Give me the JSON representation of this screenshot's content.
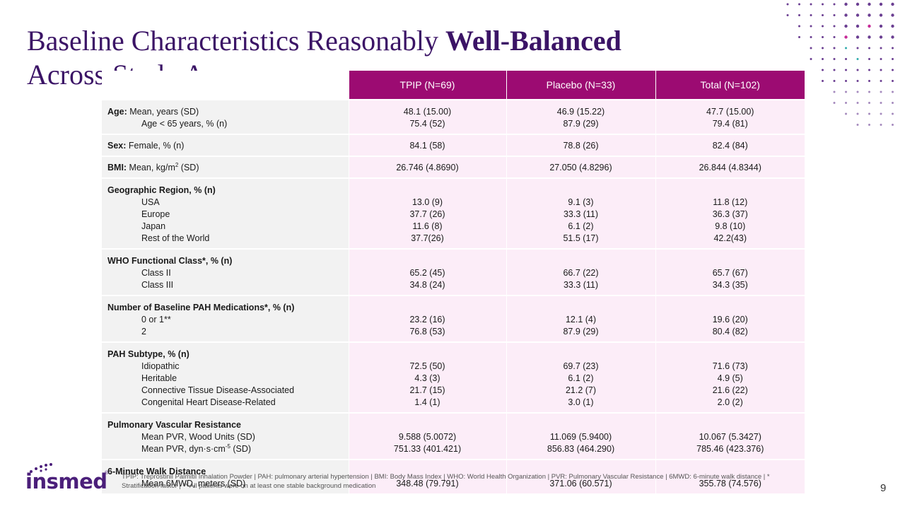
{
  "title": {
    "part1": "Baseline Characteristics Reasonably",
    "bold": "Well-Balanced",
    "part2": "Across Study Arms"
  },
  "table": {
    "headers": [
      "TPIP (N=69)",
      "Placebo (N=33)",
      "Total (N=102)"
    ],
    "age": {
      "label_bold": "Age:",
      "label_rest": " Mean, years (SD)",
      "sub": "Age < 65 years, % (n)",
      "tpip": [
        "48.1 (15.00)",
        "75.4 (52)"
      ],
      "placebo": [
        "46.9 (15.22)",
        "87.9 (29)"
      ],
      "total": [
        "47.7 (15.00)",
        "79.4 (81)"
      ]
    },
    "sex": {
      "label_bold": "Sex:",
      "label_rest": " Female, % (n)",
      "tpip": "84.1 (58)",
      "placebo": "78.8 (26)",
      "total": "82.4 (84)"
    },
    "bmi": {
      "label_bold": "BMI:",
      "label_rest": " Mean, kg/m",
      "label_sup": "2",
      "label_end": " (SD)",
      "tpip": "26.746 (4.8690)",
      "placebo": "27.050 (4.8296)",
      "total": "26.844 (4.8344)"
    },
    "region": {
      "label": "Geographic Region, % (n)",
      "subs": [
        "USA",
        "Europe",
        "Japan",
        "Rest of the World"
      ],
      "tpip": [
        "13.0 (9)",
        "37.7 (26)",
        "11.6 (8)",
        "37.7(26)"
      ],
      "placebo": [
        "9.1 (3)",
        "33.3 (11)",
        "6.1 (2)",
        "51.5 (17)"
      ],
      "total": [
        "11.8 (12)",
        "36.3 (37)",
        "9.8 (10)",
        "42.2(43)"
      ]
    },
    "who": {
      "label": "WHO Functional Class*, % (n)",
      "subs": [
        "Class II",
        "Class III"
      ],
      "tpip": [
        "65.2 (45)",
        "34.8 (24)"
      ],
      "placebo": [
        "66.7 (22)",
        "33.3 (11)"
      ],
      "total": [
        "65.7 (67)",
        "34.3 (35)"
      ]
    },
    "meds": {
      "label": "Number of Baseline PAH Medications*, % (n)",
      "subs": [
        "0 or 1**",
        "2"
      ],
      "tpip": [
        "23.2 (16)",
        "76.8 (53)"
      ],
      "placebo": [
        "12.1 (4)",
        "87.9 (29)"
      ],
      "total": [
        "19.6 (20)",
        "80.4 (82)"
      ]
    },
    "pah": {
      "label": "PAH Subtype, % (n)",
      "subs": [
        "Idiopathic",
        "Heritable",
        "Connective Tissue Disease-Associated",
        "Congenital Heart Disease-Related"
      ],
      "tpip": [
        "72.5 (50)",
        "4.3 (3)",
        "21.7 (15)",
        "1.4 (1)"
      ],
      "placebo": [
        "69.7 (23)",
        "6.1 (2)",
        "21.2 (7)",
        "3.0 (1)"
      ],
      "total": [
        "71.6 (73)",
        "4.9 (5)",
        "21.6 (22)",
        "2.0 (2)"
      ]
    },
    "pvr": {
      "label": "Pulmonary Vascular Resistance",
      "sub1": "Mean PVR, Wood Units (SD)",
      "sub2_pre": "Mean PVR, dyn·s·cm",
      "sub2_sup": "-5",
      "sub2_post": " (SD)",
      "tpip": [
        "9.588 (5.0072)",
        "751.33 (401.421)"
      ],
      "placebo": [
        "11.069 (5.9400)",
        "856.83 (464.290)"
      ],
      "total": [
        "10.067 (5.3427)",
        "785.46 (423.376)"
      ]
    },
    "walk": {
      "label": "6-Minute Walk Distance",
      "sub": "Mean 6MWD, meters (SD)",
      "tpip": "348.48 (79.791)",
      "placebo": "371.06 (60.571)",
      "total": "355.78 (74.576)"
    }
  },
  "logo": {
    "text": "insmed",
    "reg": "®"
  },
  "footnote": "TPIP: Treprostinil Palmitil Inhalation Powder | PAH: pulmonary arterial hypertension | BMI: Body Mass Index | WHO: World Health Organization | PVR: Pulmonary Vascular Resistance | 6MWD: 6-minute walk distance | * Stratification factor | ** All patients were on at least one stable background medication",
  "page_number": "9",
  "colors": {
    "title": "#3b1466",
    "header_bg": "#9c0b72",
    "value_bg": "#fcedf8",
    "label_bg": "#f2f2f2",
    "dot_purple": "#5b2a86",
    "dot_magenta": "#c0148c",
    "dot_teal": "#1aa3a3"
  }
}
